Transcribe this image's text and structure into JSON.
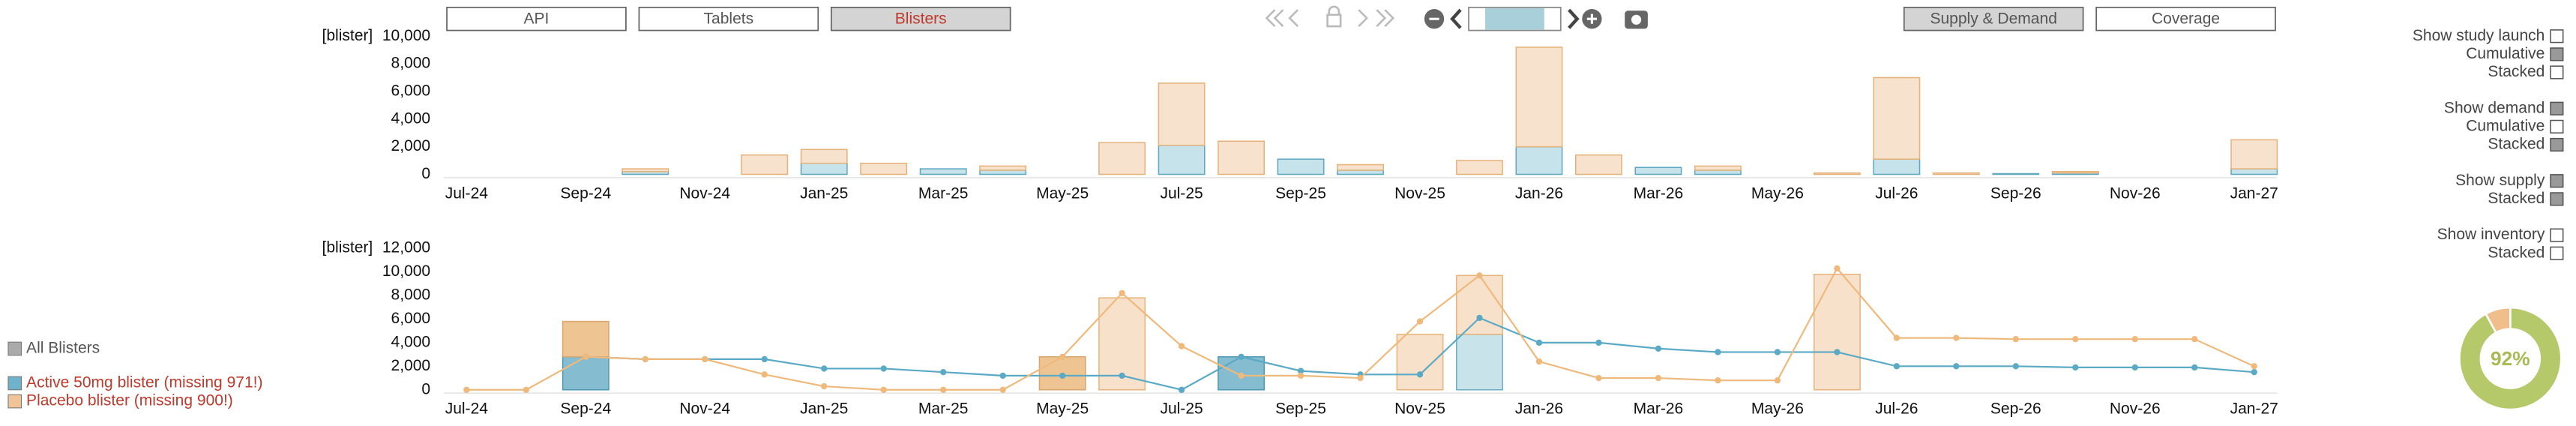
{
  "toolbar": {
    "tabs": [
      "API",
      "Tablets",
      "Blisters"
    ],
    "active_tab": 2,
    "views": [
      "Supply & Demand",
      "Coverage"
    ],
    "active_view": 0
  },
  "chart_data": [
    {
      "type": "bar",
      "y_unit": "[blister]",
      "categories": [
        "Jul-24",
        null,
        "Sep-24",
        null,
        "Nov-24",
        null,
        "Jan-25",
        null,
        "Mar-25",
        null,
        "May-25",
        null,
        "Jul-25",
        null,
        "Sep-25",
        null,
        "Nov-25",
        null,
        "Jan-26",
        null,
        "Mar-26",
        null,
        "May-26",
        null,
        "Jul-26",
        null,
        "Sep-26",
        null,
        "Nov-26",
        null,
        "Jan-27"
      ],
      "bar_groups": [
        [
          {
            "color": "#c6e2ea",
            "edge": "#5fa8c2",
            "values": [
              0,
              0,
              0,
              200,
              0,
              0,
              800,
              0,
              400,
              300,
              0,
              0,
              2100,
              0,
              1100,
              300,
              0,
              0,
              2000,
              0,
              500,
              300,
              0,
              0,
              1100,
              0,
              50,
              100,
              0,
              0,
              400
            ]
          },
          {
            "color": "#f6e2cd",
            "edge": "#e6b27a",
            "values": [
              0,
              0,
              0,
              200,
              0,
              1400,
              1000,
              800,
              0,
              300,
              0,
              2300,
              4500,
              2400,
              0,
              400,
              0,
              1000,
              7200,
              1400,
              0,
              300,
              0,
              100,
              5900,
              100,
              0,
              100,
              0,
              0,
              2100
            ]
          }
        ]
      ],
      "ylim": [
        0,
        10000
      ],
      "yticks": [
        0,
        {
          "value": 2000,
          "label": "2,000"
        },
        {
          "value": 4000,
          "label": "4,000"
        },
        {
          "value": 6000,
          "label": "6,000"
        },
        {
          "value": 8000,
          "label": "8,000"
        },
        {
          "value": 10000,
          "label": "10,000"
        }
      ]
    },
    {
      "type": "combo",
      "y_unit": "[blister]",
      "categories": [
        "Jul-24",
        null,
        "Sep-24",
        null,
        "Nov-24",
        null,
        "Jan-25",
        null,
        "Mar-25",
        null,
        "May-25",
        null,
        "Jul-25",
        null,
        "Sep-25",
        null,
        "Nov-25",
        null,
        "Jan-26",
        null,
        "Mar-26",
        null,
        "May-26",
        null,
        "Jul-26",
        null,
        "Sep-26",
        null,
        "Nov-26",
        null,
        "Jan-27"
      ],
      "bar_groups": [
        [
          {
            "color": "#85bccf",
            "edge": "#4b9ab6",
            "values": [
              0,
              0,
              2800,
              0,
              0,
              0,
              0,
              0,
              0,
              0,
              0,
              0,
              0,
              2800,
              0,
              0,
              0,
              0,
              0,
              0,
              0,
              0,
              0,
              0,
              0,
              0,
              0,
              0,
              0,
              0,
              0
            ]
          },
          {
            "color": "#efc493",
            "edge": "#dba66c",
            "values": [
              0,
              0,
              3000,
              0,
              0,
              0,
              0,
              0,
              0,
              0,
              2800,
              0,
              0,
              0,
              0,
              0,
              0,
              0,
              0,
              0,
              0,
              0,
              0,
              0,
              0,
              0,
              0,
              0,
              0,
              0,
              0
            ]
          }
        ],
        [
          {
            "color": "#c9e3eb",
            "edge": "#6aaec6",
            "values": [
              0,
              0,
              0,
              0,
              0,
              0,
              0,
              0,
              0,
              0,
              0,
              0,
              0,
              0,
              0,
              0,
              0,
              4700,
              0,
              0,
              0,
              0,
              0,
              0,
              0,
              0,
              0,
              0,
              0,
              0,
              0
            ]
          },
          {
            "color": "#f7e1cb",
            "edge": "#e8b47c",
            "values": [
              0,
              0,
              0,
              0,
              0,
              0,
              0,
              0,
              0,
              0,
              0,
              7800,
              0,
              0,
              0,
              0,
              4700,
              5000,
              0,
              0,
              0,
              0,
              0,
              9800,
              0,
              0,
              0,
              0,
              0,
              0,
              0
            ]
          }
        ]
      ],
      "lines": [
        {
          "color": "#5aaac6",
          "values": [
            null,
            null,
            2800,
            2600,
            2600,
            2600,
            1800,
            1800,
            1500,
            1200,
            1200,
            1200,
            0,
            2800,
            1600,
            1300,
            1300,
            6100,
            4000,
            4000,
            3500,
            3200,
            3200,
            3200,
            2000,
            2000,
            2000,
            1900,
            1900,
            1900,
            1500
          ]
        },
        {
          "color": "#f0b97c",
          "values": [
            0,
            0,
            2800,
            2600,
            2600,
            1300,
            300,
            0,
            0,
            0,
            2800,
            8200,
            3700,
            1200,
            1200,
            1000,
            5800,
            9700,
            2400,
            1000,
            1000,
            800,
            800,
            10300,
            4400,
            4400,
            4300,
            4300,
            4300,
            4300,
            2000
          ]
        }
      ],
      "ylim": [
        0,
        12000
      ],
      "yticks": [
        0,
        {
          "value": 2000,
          "label": "2,000"
        },
        {
          "value": 4000,
          "label": "4,000"
        },
        {
          "value": 6000,
          "label": "6,000"
        },
        {
          "value": 8000,
          "label": "8,000"
        },
        {
          "value": 10000,
          "label": "10,000"
        },
        {
          "value": 12000,
          "label": "12,000"
        }
      ]
    },
    {
      "type": "pie",
      "values": [
        92,
        8
      ],
      "colors": [
        "#b5c86a",
        "#efbe8a"
      ],
      "value_labels": [
        "92%",
        null
      ]
    }
  ],
  "legend": [
    {
      "label": "All Blisters",
      "color": "#aaaaaa",
      "text_color": "#555555"
    },
    {
      "label": "Active 50mg blister (missing 971!)",
      "color": "#6eb3ca",
      "text_color": "#c0392b"
    },
    {
      "label": "Placebo blister (missing 900!)",
      "color": "#f0c497",
      "text_color": "#c0392b"
    }
  ],
  "options": [
    {
      "label": "Show study launch",
      "checked": false
    },
    {
      "label": "Cumulative",
      "checked": true
    },
    {
      "label": "Stacked",
      "checked": false
    },
    {
      "label": "Show demand",
      "checked": true
    },
    {
      "label": "Cumulative",
      "checked": false
    },
    {
      "label": "Stacked",
      "checked": true
    },
    {
      "label": "Show supply",
      "checked": true
    },
    {
      "label": "Stacked",
      "checked": true
    },
    {
      "label": "Show inventory",
      "checked": false
    },
    {
      "label": "Stacked",
      "checked": false
    }
  ]
}
